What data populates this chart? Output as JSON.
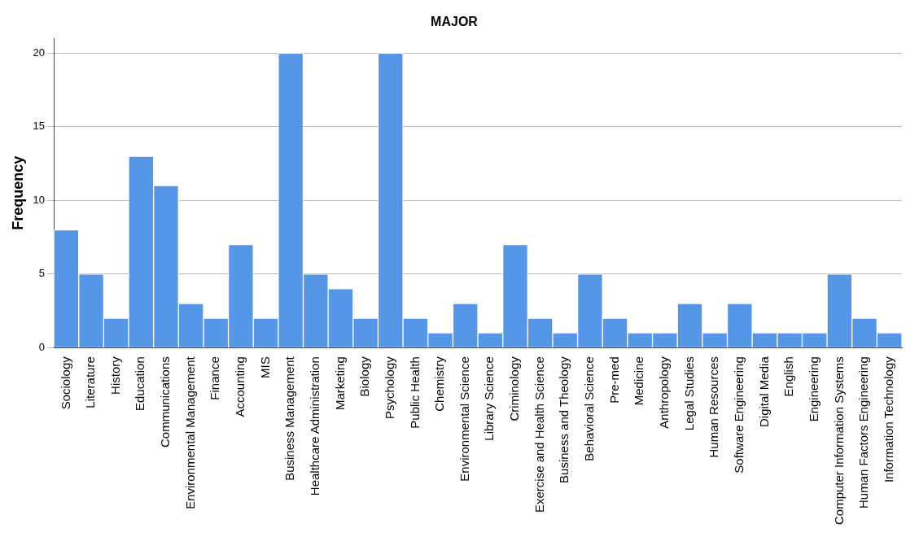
{
  "chart_data": {
    "type": "bar",
    "title": "MAJOR",
    "ylabel": "Frequency",
    "categories": [
      "Sociology",
      "Literature",
      "History",
      "Education",
      "Communications",
      "Environmental Management",
      "Finance",
      "Accounting",
      "MIS",
      "Business Management",
      "Healthcare Administration",
      "Marketing",
      "Biology",
      "Psychology",
      "Public Health",
      "Chemistry",
      "Environmental Science",
      "Library Science",
      "Criminology",
      "Exercise and Health Science",
      "Business and Theology",
      "Behavioral Science",
      "Pre-med",
      "Medicine",
      "Anthropology",
      "Legal Studies",
      "Human Resources",
      "Software Engineering",
      "Digital Media",
      "English",
      "Engineering",
      "Computer Information Systems",
      "Human Factors Engineering",
      "Information Technology"
    ],
    "values": [
      8,
      5,
      2,
      13,
      11,
      3,
      2,
      7,
      2,
      20,
      5,
      4,
      2,
      20,
      2,
      1,
      3,
      1,
      7,
      2,
      1,
      5,
      2,
      1,
      1,
      3,
      1,
      3,
      1,
      1,
      1,
      5,
      2,
      1
    ],
    "color": "#5596e6",
    "ylim": [
      0,
      21
    ],
    "yticks": [
      0,
      5,
      10,
      15,
      20
    ],
    "grid": "y",
    "legend": false
  }
}
